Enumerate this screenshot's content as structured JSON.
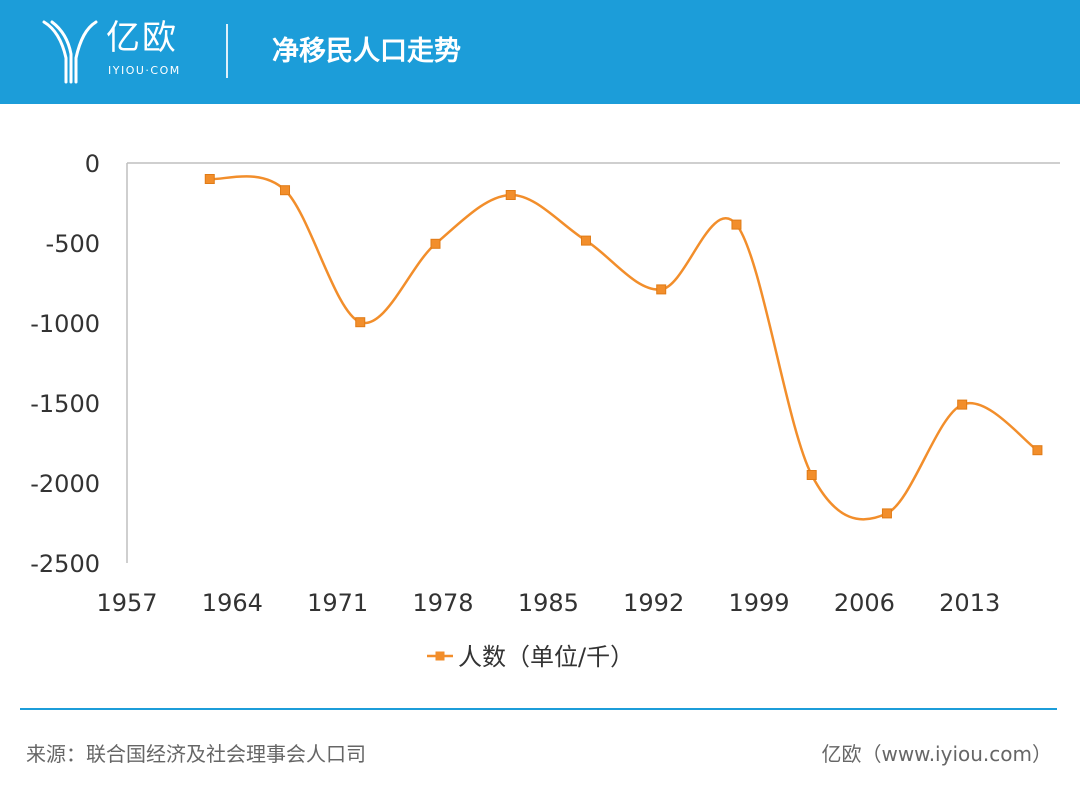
{
  "header": {
    "logo_text": "亿欧",
    "logo_sub": "IYIOU·COM",
    "title": "净移民人口走势",
    "background_color": "#1c9dd9"
  },
  "chart_data": {
    "type": "line",
    "smooth": true,
    "x_ticks": [
      1957,
      1964,
      1971,
      1978,
      1985,
      1992,
      1999,
      2006,
      2013
    ],
    "y_ticks": [
      0,
      -500,
      -1000,
      -1500,
      -2000,
      -2500
    ],
    "xlim": [
      1957,
      2019
    ],
    "ylim": [
      -2500,
      0
    ],
    "series": [
      {
        "name": "人数（单位/千）",
        "color": "#f28e2b",
        "marker": "square",
        "x": [
          1962.5,
          1967.5,
          1972.5,
          1977.5,
          1982.5,
          1987.5,
          1992.5,
          1997.5,
          2002.5,
          2007.5,
          2012.5,
          2017.5
        ],
        "y": [
          -100,
          -170,
          -995,
          -505,
          -200,
          -485,
          -790,
          -385,
          -1950,
          -2190,
          -1510,
          -1795
        ]
      }
    ],
    "legend_position": "bottom",
    "grid": false
  },
  "footer": {
    "source": "来源：联合国经济及社会理事会人口司",
    "brand": "亿欧（www.iyiou.com）"
  }
}
